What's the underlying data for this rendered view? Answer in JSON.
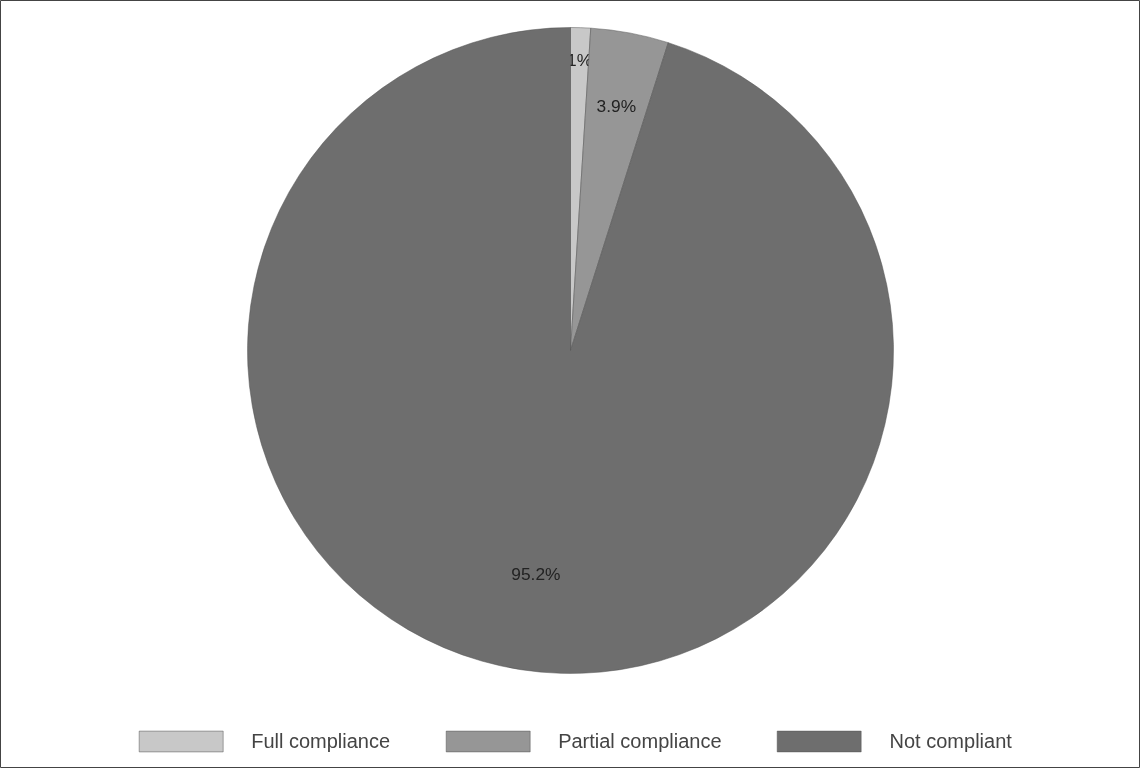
{
  "chart_data": {
    "type": "pie",
    "categories": [
      "Full compliance",
      "Partial compliance",
      "Not compliant"
    ],
    "values": [
      1,
      3.9,
      95.2
    ],
    "colors": [
      "#c8c8c8",
      "#969696",
      "#6e6e6e"
    ],
    "value_labels": [
      "1%",
      "3.9%",
      "95.2%"
    ],
    "legend": "bottom"
  }
}
